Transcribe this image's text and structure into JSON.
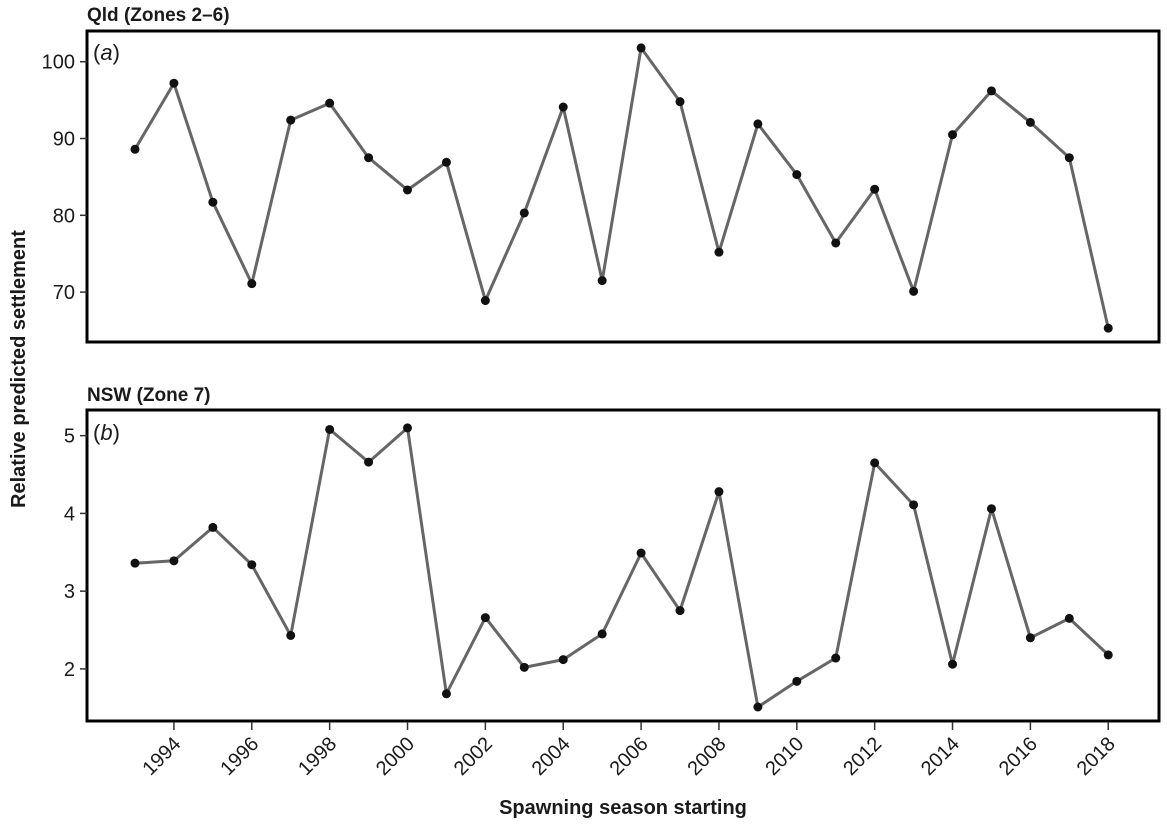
{
  "chart_data": [
    {
      "type": "line",
      "title": "Qld (Zones 2–6)",
      "panel_label": "a",
      "x": [
        1993,
        1994,
        1995,
        1996,
        1997,
        1998,
        1999,
        2000,
        2001,
        2002,
        2003,
        2004,
        2005,
        2006,
        2007,
        2008,
        2009,
        2010,
        2011,
        2012,
        2013,
        2014,
        2015,
        2016,
        2017,
        2018
      ],
      "series": [
        {
          "values": [
            88.6,
            97.2,
            81.7,
            71.1,
            92.4,
            94.6,
            87.5,
            83.3,
            86.9,
            68.9,
            80.3,
            94.1,
            71.5,
            101.8,
            94.8,
            75.2,
            91.9,
            85.3,
            76.4,
            83.4,
            70.1,
            90.5,
            96.2,
            92.1,
            87.5,
            65.3
          ]
        }
      ],
      "ylim": [
        63.5,
        104
      ],
      "yticks": [
        70,
        80,
        90,
        100
      ],
      "grid": false
    },
    {
      "type": "line",
      "title": "NSW (Zone 7)",
      "panel_label": "b",
      "x": [
        1993,
        1994,
        1995,
        1996,
        1997,
        1998,
        1999,
        2000,
        2001,
        2002,
        2003,
        2004,
        2005,
        2006,
        2007,
        2008,
        2009,
        2010,
        2011,
        2012,
        2013,
        2014,
        2015,
        2016,
        2017,
        2018
      ],
      "series": [
        {
          "values": [
            3.36,
            3.39,
            3.82,
            3.34,
            2.43,
            5.08,
            4.66,
            5.1,
            1.68,
            2.66,
            2.02,
            2.12,
            2.45,
            3.49,
            2.75,
            4.28,
            1.51,
            1.84,
            2.14,
            4.65,
            4.11,
            2.06,
            4.06,
            2.4,
            2.65,
            2.18
          ]
        }
      ],
      "ylim": [
        1.33,
        5.33
      ],
      "yticks": [
        2,
        3,
        4,
        5
      ],
      "grid": false
    }
  ],
  "xticks": [
    "1994",
    "1996",
    "1998",
    "2000",
    "2002",
    "2004",
    "2006",
    "2008",
    "2010",
    "2012",
    "2014",
    "2016",
    "2018"
  ],
  "xlabel": "Spawning season starting",
  "ylabel": "Relative predicted settlement",
  "colors": {
    "line": "#666666",
    "point": "#111111",
    "frame": "#000000"
  }
}
